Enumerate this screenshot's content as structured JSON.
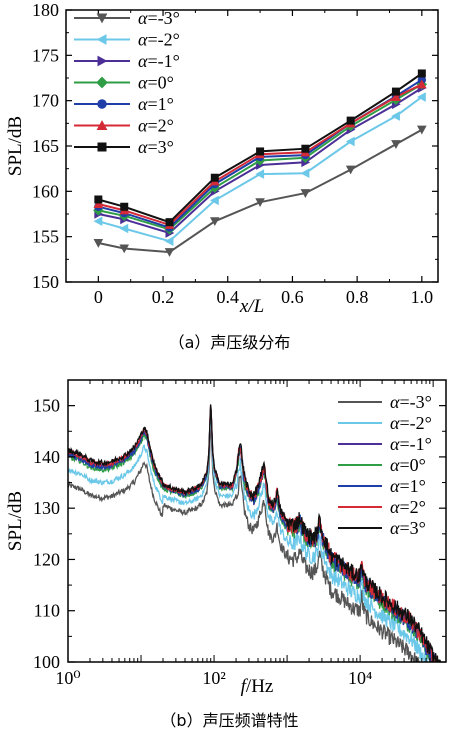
{
  "colors": {
    "a=-3": "#555555",
    "a=-2": "#6cc8e8",
    "a=-1": "#4b2f97",
    "a=0": "#2e9d46",
    "a=1": "#1f3ea8",
    "a=2": "#d42a35",
    "a=3": "#111111"
  },
  "chart_data": [
    {
      "type": "line",
      "caption": "（a）声压级分布",
      "xlabel": "x/L",
      "ylabel": "SPL/dB",
      "xlim": [
        -0.1,
        1.05
      ],
      "ylim": [
        150,
        180
      ],
      "xticks": [
        "0",
        "0.2",
        "0.4",
        "0.6",
        "0.8",
        "1.0"
      ],
      "yticks": [
        "150",
        "155",
        "160",
        "165",
        "170",
        "175",
        "180"
      ],
      "legend_position": "top-left",
      "grid": false,
      "x": [
        0,
        0.08,
        0.22,
        0.36,
        0.5,
        0.64,
        0.78,
        0.92,
        1.0
      ],
      "series": [
        {
          "name": "α=-3°",
          "marker": "triangle-down",
          "color_key": "a=-3",
          "values": [
            154.3,
            153.7,
            153.3,
            156.7,
            158.8,
            159.8,
            162.4,
            165.2,
            166.8
          ]
        },
        {
          "name": "α=-2°",
          "marker": "triangle-left",
          "color_key": "a=-2",
          "values": [
            156.7,
            155.9,
            154.5,
            159.0,
            161.9,
            162.0,
            165.5,
            168.3,
            170.4
          ]
        },
        {
          "name": "α=-1°",
          "marker": "triangle-right",
          "color_key": "a=-1",
          "values": [
            157.5,
            156.9,
            155.4,
            160.0,
            162.9,
            163.2,
            166.8,
            169.6,
            171.4
          ]
        },
        {
          "name": "α=0°",
          "marker": "diamond",
          "color_key": "a=0",
          "values": [
            157.9,
            157.3,
            155.8,
            160.4,
            163.4,
            163.7,
            167.2,
            170.1,
            171.8
          ]
        },
        {
          "name": "α=1°",
          "marker": "circle",
          "color_key": "a=1",
          "values": [
            158.3,
            157.6,
            156.0,
            160.8,
            163.8,
            164.0,
            167.5,
            170.5,
            172.3
          ]
        },
        {
          "name": "α=2°",
          "marker": "triangle-up",
          "color_key": "a=2",
          "values": [
            158.6,
            157.9,
            156.3,
            161.1,
            164.1,
            164.3,
            167.5,
            170.4,
            171.8
          ]
        },
        {
          "name": "α=3°",
          "marker": "square",
          "color_key": "a=3",
          "values": [
            159.1,
            158.3,
            156.6,
            161.5,
            164.4,
            164.7,
            167.8,
            171.0,
            173.0
          ]
        }
      ]
    },
    {
      "type": "line",
      "caption": "（b）声压频谱特性",
      "xlabel": "f/Hz",
      "ylabel": "SPL/dB",
      "xscale": "log",
      "xlim": [
        1,
        150000
      ],
      "ylim": [
        100,
        155
      ],
      "xticks": [
        "10⁰",
        "10²",
        "10⁴"
      ],
      "yticks": [
        "100",
        "110",
        "120",
        "130",
        "140",
        "150"
      ],
      "legend_position": "top-right",
      "grid": false,
      "series": [
        {
          "name": "α=-3°",
          "color_key": "a=-3",
          "offset": -6.5
        },
        {
          "name": "α=-2°",
          "color_key": "a=-2",
          "offset": -3.5
        },
        {
          "name": "α=-1°",
          "color_key": "a=-1",
          "offset": -0.5
        },
        {
          "name": "α=0°",
          "color_key": "a=0",
          "offset": -1.0
        },
        {
          "name": "α=1°",
          "color_key": "a=1",
          "offset": -0.5
        },
        {
          "name": "α=2°",
          "color_key": "a=2",
          "offset": 0.0
        },
        {
          "name": "α=3°",
          "color_key": "a=3",
          "offset": 0.3
        }
      ],
      "reference_spectrum": {
        "f": [
          1,
          1.5,
          2,
          3,
          4,
          5,
          6,
          8,
          10,
          11,
          12,
          13,
          15,
          20,
          30,
          40,
          50,
          60,
          70,
          80,
          85,
          88,
          90,
          92,
          95,
          100,
          120,
          150,
          180,
          200,
          220,
          230,
          240,
          260,
          300,
          350,
          400,
          450,
          480,
          500,
          520,
          560,
          650,
          700,
          720,
          740,
          800,
          1000,
          1200,
          1400,
          1500,
          1600,
          1800,
          2200,
          2500,
          2700,
          2800,
          3000,
          3500,
          4000,
          5000,
          6000,
          8000,
          10000,
          10500,
          11000,
          12000,
          15000,
          20000,
          30000,
          50000,
          70000,
          90000,
          110000,
          130000
        ],
        "spl": [
          141,
          140.2,
          139,
          138.5,
          138.8,
          139.5,
          140,
          141.5,
          144,
          145.5,
          144.5,
          142,
          138.5,
          134.5,
          133.5,
          133,
          133.5,
          134,
          135,
          137,
          141,
          147,
          151,
          148,
          142,
          138,
          134.5,
          134.5,
          134.5,
          137,
          141.5,
          142.5,
          140,
          136,
          133,
          132,
          134,
          136.5,
          138,
          137.5,
          134.5,
          131.5,
          130.5,
          131.5,
          133.5,
          132.5,
          129.5,
          127,
          126.5,
          127,
          128,
          126.5,
          125,
          124,
          124.5,
          126.5,
          127.5,
          125,
          122.5,
          120.5,
          119.5,
          118.5,
          117,
          116.5,
          119.5,
          117,
          115.5,
          114,
          112.5,
          110.5,
          108,
          105,
          102,
          100,
          98
        ]
      }
    }
  ]
}
